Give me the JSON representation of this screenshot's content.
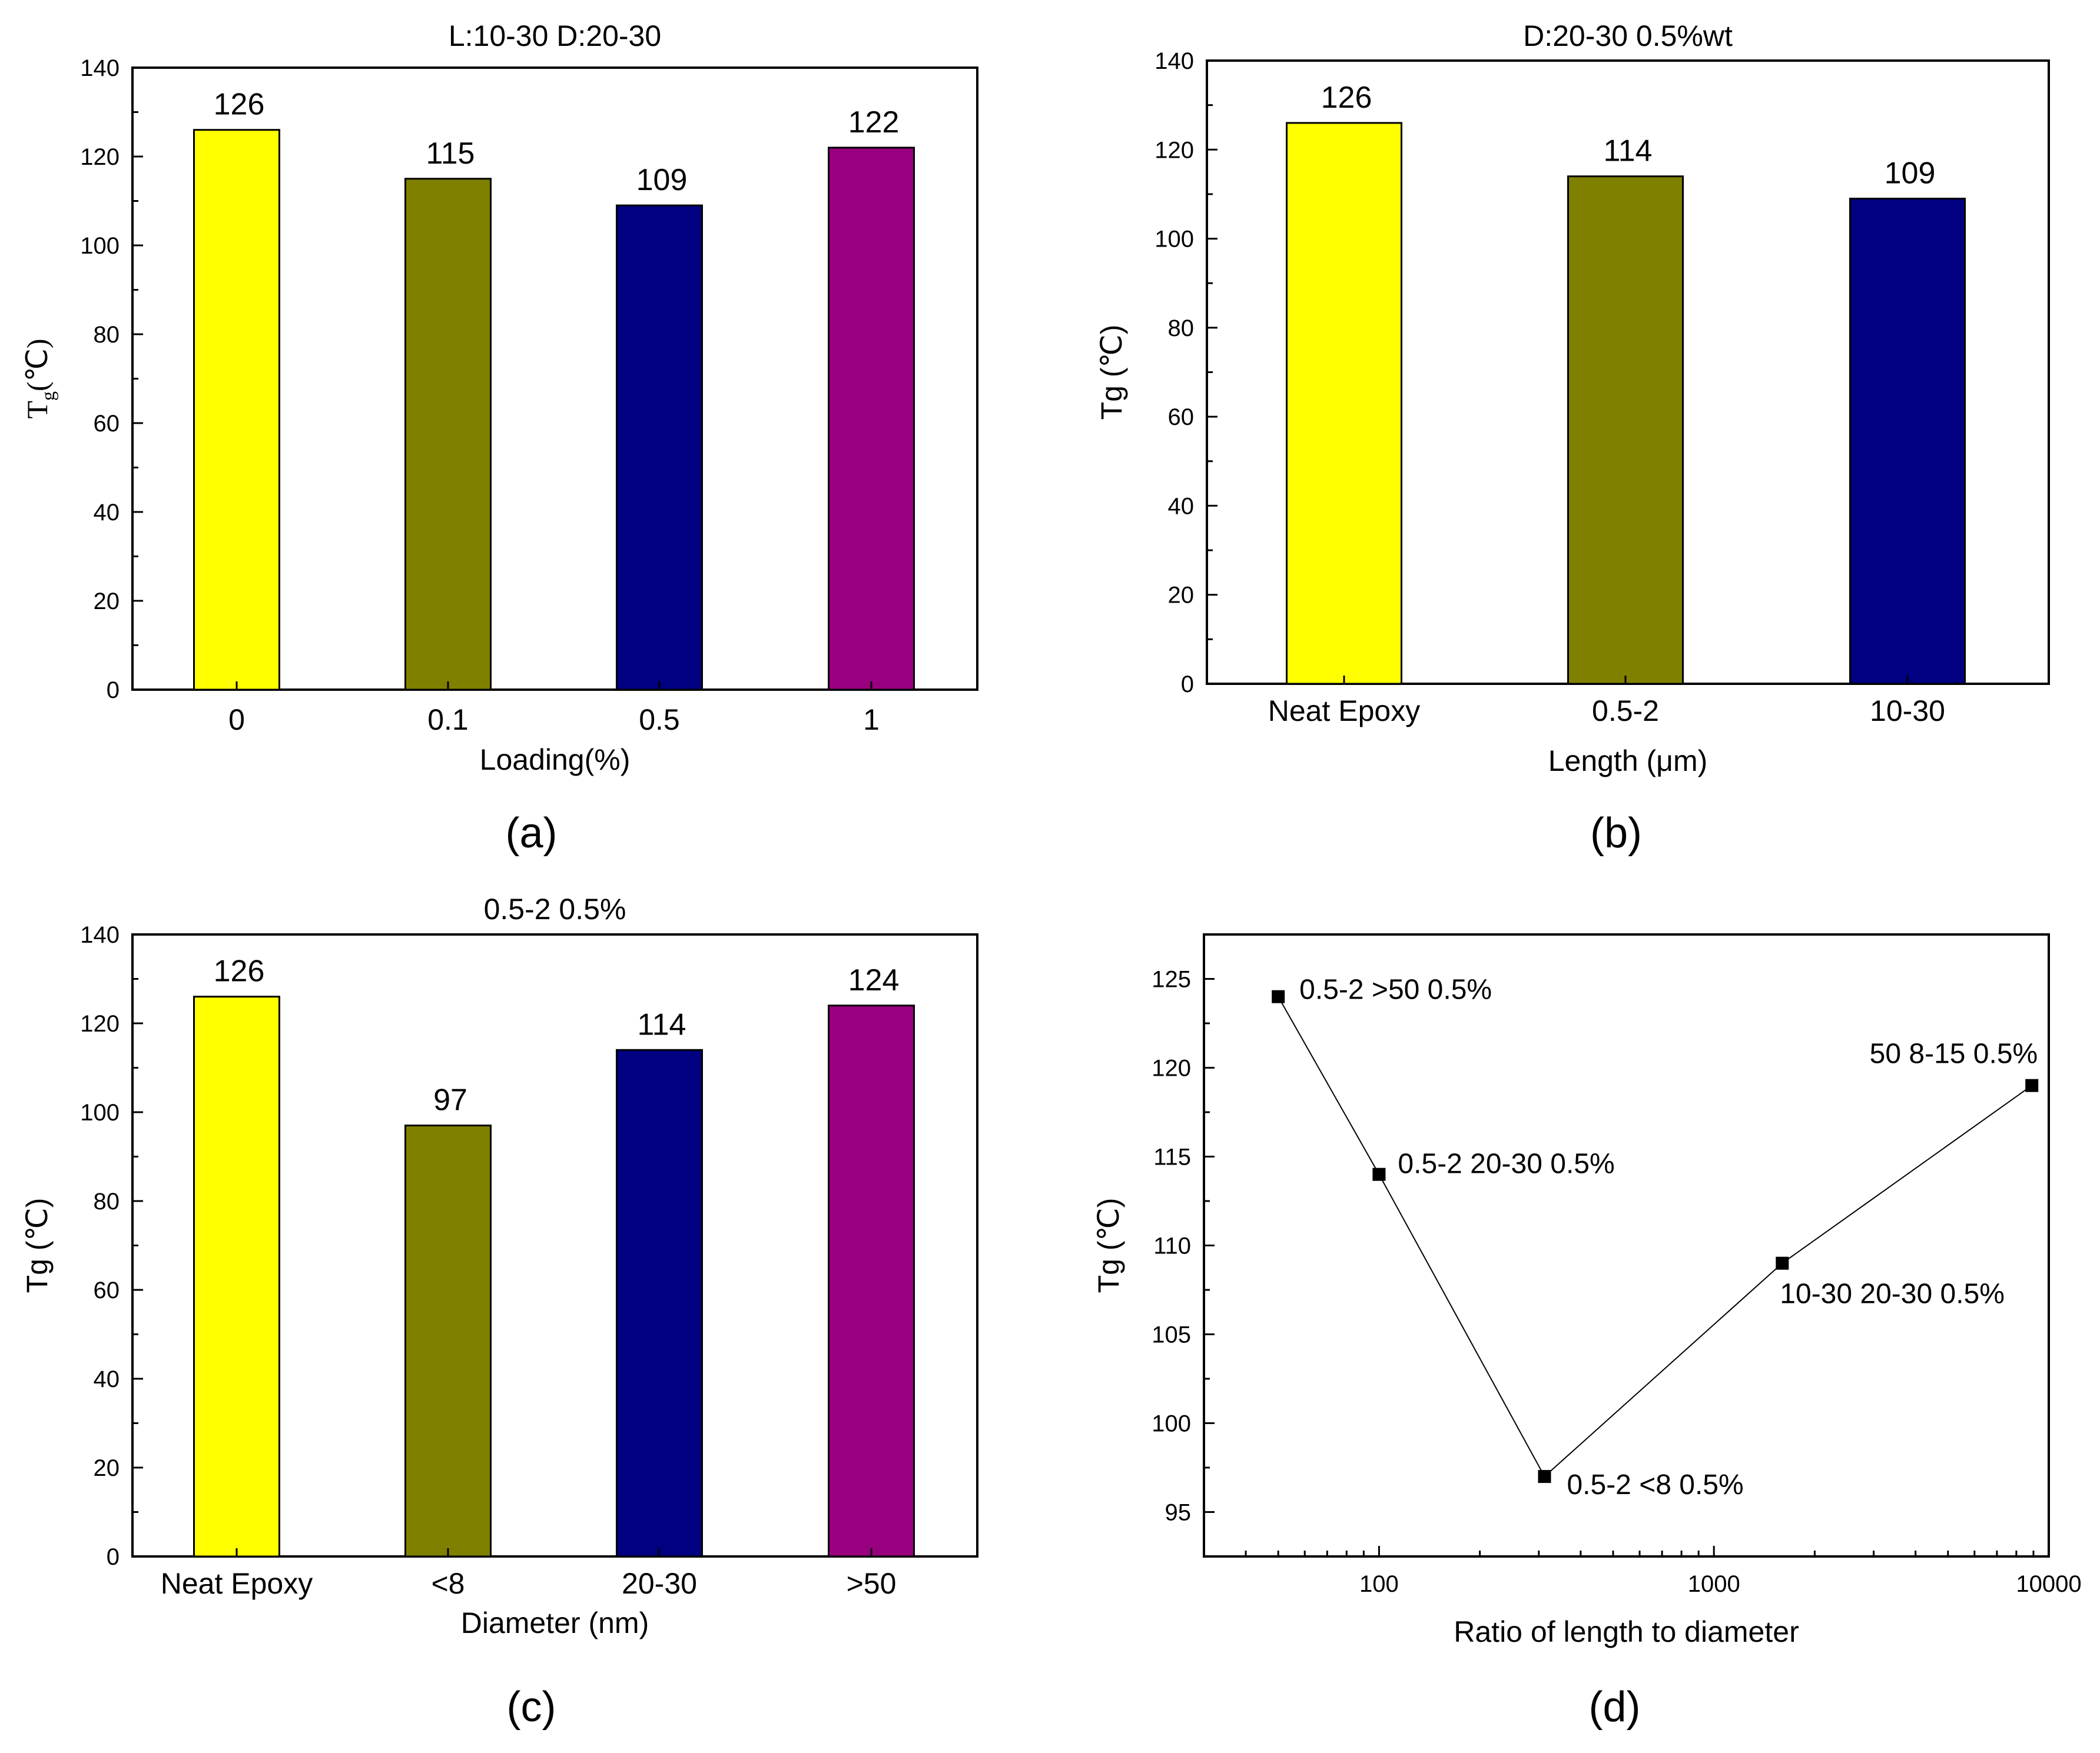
{
  "chart_data": [
    {
      "id": "a",
      "type": "bar",
      "title": "L:10-30  D:20-30",
      "categories": [
        "0",
        "0.1",
        "0.5",
        "1"
      ],
      "values": [
        126,
        115,
        109,
        122
      ],
      "colors": [
        "#ffff00",
        "#808000",
        "#000080",
        "#990080"
      ],
      "xlabel": "Loading(%)",
      "ylabel_main": "T",
      "ylabel_sub": "g",
      "ylabel_unit": "(℃)",
      "ylim": [
        0,
        140
      ],
      "ytick_labels": [
        "0",
        "20",
        "40",
        "60",
        "80",
        "100",
        "120",
        "140"
      ],
      "panel_label": "(a)"
    },
    {
      "id": "b",
      "type": "bar",
      "title": "D:20-30 0.5%wt",
      "categories": [
        "Neat Epoxy",
        "0.5-2",
        "10-30"
      ],
      "values": [
        126,
        114,
        109
      ],
      "colors": [
        "#ffff00",
        "#808000",
        "#000080"
      ],
      "xlabel": "Length (μm)",
      "ylabel": "Tg (℃)",
      "ylim": [
        0,
        140
      ],
      "ytick_labels": [
        "0",
        "20",
        "40",
        "60",
        "80",
        "100",
        "120",
        "140"
      ],
      "panel_label": "(b)"
    },
    {
      "id": "c",
      "type": "bar",
      "title": "0.5-2 0.5%",
      "categories": [
        "Neat Epoxy",
        "<8",
        "20-30",
        ">50"
      ],
      "values": [
        126,
        97,
        114,
        124
      ],
      "colors": [
        "#ffff00",
        "#808000",
        "#000080",
        "#990080"
      ],
      "xlabel": "Diameter (nm)",
      "ylabel": "Tg (℃)",
      "ylim": [
        0,
        140
      ],
      "ytick_labels": [
        "0",
        "20",
        "40",
        "60",
        "80",
        "100",
        "120",
        "140"
      ],
      "panel_label": "(c)"
    },
    {
      "id": "d",
      "type": "line",
      "xscale": "log",
      "points": [
        {
          "x": 50,
          "y": 124,
          "label": "0.5-2 >50 0.5%"
        },
        {
          "x": 100,
          "y": 114,
          "label": "0.5-2 20-30 0.5%"
        },
        {
          "x": 312,
          "y": 97,
          "label": "0.5-2 <8 0.5%"
        },
        {
          "x": 1600,
          "y": 109,
          "label": "10-30 20-30 0.5%"
        },
        {
          "x": 8900,
          "y": 119,
          "label": "50 8-15 0.5%"
        }
      ],
      "xlabel": "Ratio of  length to diameter",
      "ylabel": "Tg (℃)",
      "xlim": [
        30,
        10000
      ],
      "ylim": [
        92.5,
        127.5
      ],
      "xtick_values": [
        100,
        1000,
        10000
      ],
      "xtick_labels": [
        "100",
        "1000",
        "10000"
      ],
      "ytick_values": [
        95,
        100,
        105,
        110,
        115,
        120,
        125
      ],
      "ytick_labels": [
        "95",
        "100",
        "105",
        "110",
        "115",
        "120",
        "125"
      ],
      "panel_label": "(d)"
    }
  ]
}
